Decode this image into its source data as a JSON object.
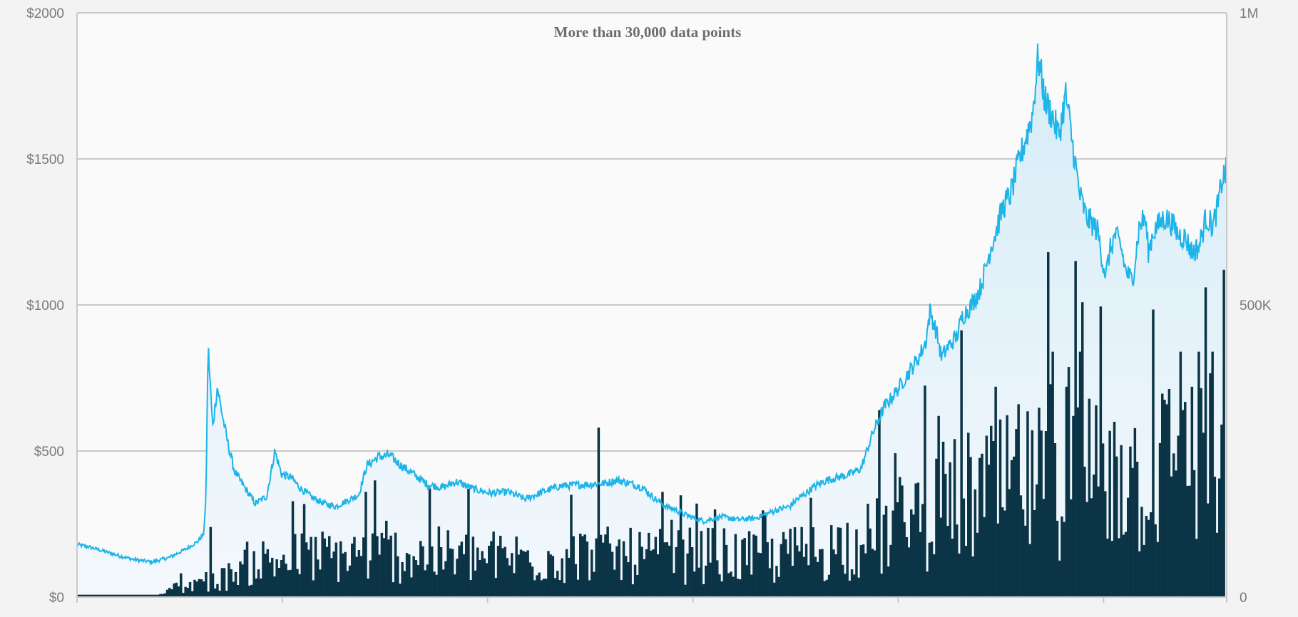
{
  "chart_data": {
    "type": "line",
    "title": "More than 30,000 data points",
    "xlabel": "",
    "ylabel": "",
    "grid": true,
    "legend": "none",
    "colors": {
      "price_line": "#1db4e8",
      "price_area_top": "#d6ecf7",
      "price_area_bottom": "#f3f8fc",
      "volume_bars": "#0b3446",
      "gridline": "#c9c9c9",
      "plot_background": "#fafafa",
      "page_background": "#f3f3f3",
      "tick_text": "#7a7a7a",
      "title_text": "#6d6d6d"
    },
    "x_range": [
      0,
      1
    ],
    "y_left": {
      "range": [
        0,
        2000
      ],
      "ticks": [
        0,
        500,
        1000,
        1500,
        2000
      ],
      "tick_labels": [
        "$0",
        "$500",
        "$1000",
        "$1500",
        "$2000"
      ]
    },
    "y_right": {
      "range": [
        0,
        1000000
      ],
      "ticks": [
        0,
        500000,
        1000000
      ],
      "tick_labels": [
        "0",
        "500K",
        "1M"
      ]
    },
    "x_ticks": [
      0,
      0.1786,
      0.3571,
      0.5357,
      0.7143,
      0.8929,
      1.0
    ],
    "price_anchors": {
      "x": [
        0.0,
        0.012,
        0.025,
        0.038,
        0.05,
        0.065,
        0.08,
        0.095,
        0.105,
        0.11,
        0.112,
        0.114,
        0.118,
        0.122,
        0.127,
        0.131,
        0.137,
        0.145,
        0.155,
        0.165,
        0.172,
        0.178,
        0.186,
        0.195,
        0.205,
        0.215,
        0.225,
        0.235,
        0.245,
        0.252,
        0.262,
        0.272,
        0.282,
        0.293,
        0.305,
        0.318,
        0.33,
        0.345,
        0.36,
        0.375,
        0.39,
        0.405,
        0.42,
        0.44,
        0.46,
        0.47,
        0.48,
        0.492,
        0.5,
        0.512,
        0.52,
        0.53,
        0.545,
        0.56,
        0.575,
        0.59,
        0.6,
        0.61,
        0.62,
        0.625,
        0.632,
        0.642,
        0.652,
        0.662,
        0.672,
        0.682,
        0.692,
        0.702,
        0.712,
        0.722,
        0.732,
        0.738,
        0.742,
        0.748,
        0.752,
        0.758,
        0.765,
        0.77,
        0.778,
        0.785,
        0.79,
        0.795,
        0.8,
        0.805,
        0.812,
        0.82,
        0.826,
        0.831,
        0.836,
        0.842,
        0.848,
        0.854,
        0.86,
        0.866,
        0.872,
        0.878,
        0.883,
        0.888,
        0.892,
        0.895,
        0.898,
        0.903,
        0.908,
        0.912,
        0.918,
        0.924,
        0.929,
        0.932,
        0.936,
        0.94,
        0.946,
        0.952,
        0.958,
        0.964,
        0.97,
        0.976,
        0.982,
        0.988,
        0.993,
        0.996,
        1.0
      ],
      "y": [
        180,
        170,
        155,
        140,
        128,
        120,
        135,
        165,
        190,
        215,
        320,
        860,
        580,
        720,
        610,
        530,
        430,
        380,
        320,
        345,
        500,
        420,
        410,
        370,
        340,
        320,
        310,
        330,
        350,
        450,
        480,
        485,
        450,
        420,
        385,
        375,
        395,
        370,
        355,
        360,
        335,
        360,
        380,
        385,
        390,
        400,
        390,
        375,
        345,
        310,
        300,
        280,
        260,
        275,
        265,
        270,
        285,
        300,
        310,
        330,
        350,
        380,
        400,
        410,
        420,
        440,
        560,
        650,
        700,
        760,
        820,
        870,
        980,
        900,
        820,
        860,
        890,
        960,
        1000,
        1050,
        1120,
        1200,
        1260,
        1330,
        1380,
        1500,
        1580,
        1650,
        1850,
        1700,
        1650,
        1580,
        1720,
        1550,
        1380,
        1300,
        1280,
        1250,
        1150,
        1100,
        1180,
        1240,
        1200,
        1120,
        1080,
        1270,
        1300,
        1180,
        1250,
        1270,
        1300,
        1280,
        1240,
        1230,
        1180,
        1200,
        1300,
        1270,
        1350,
        1430,
        1460
      ]
    },
    "volume_anchors": {
      "x": [
        0.0,
        0.07,
        0.085,
        0.1,
        0.13,
        0.15,
        0.2,
        0.25,
        0.3,
        0.35,
        0.4,
        0.45,
        0.5,
        0.55,
        0.6,
        0.65,
        0.7,
        0.72,
        0.74,
        0.76,
        0.78,
        0.8,
        0.82,
        0.84,
        0.86,
        0.88,
        0.9,
        0.92,
        0.94,
        0.96,
        0.98,
        1.0
      ],
      "y": [
        5000,
        5000,
        15000,
        25000,
        40000,
        70000,
        80000,
        85000,
        85000,
        80000,
        80000,
        85000,
        80000,
        85000,
        75000,
        95000,
        120000,
        150000,
        170000,
        190000,
        200000,
        210000,
        220000,
        230000,
        250000,
        260000,
        250000,
        240000,
        260000,
        270000,
        280000,
        300000
      ]
    },
    "volume_spikes": {
      "x": [
        0.115,
        0.25,
        0.455,
        0.51,
        0.54,
        0.555,
        0.6,
        0.64,
        0.7,
        0.75,
        0.762,
        0.8,
        0.82,
        0.825,
        0.85,
        0.862,
        0.868,
        0.875,
        0.905,
        0.91,
        0.917,
        0.95,
        0.962,
        0.965,
        0.973,
        0.978,
        0.985,
        0.99,
        0.995,
        1.0
      ],
      "y": [
        120000,
        180000,
        290000,
        180000,
        160000,
        150000,
        140000,
        170000,
        320000,
        310000,
        100000,
        360000,
        330000,
        150000,
        420000,
        360000,
        310000,
        420000,
        300000,
        260000,
        170000,
        330000,
        420000,
        320000,
        360000,
        420000,
        530000,
        420000,
        110000,
        560000
      ]
    }
  }
}
